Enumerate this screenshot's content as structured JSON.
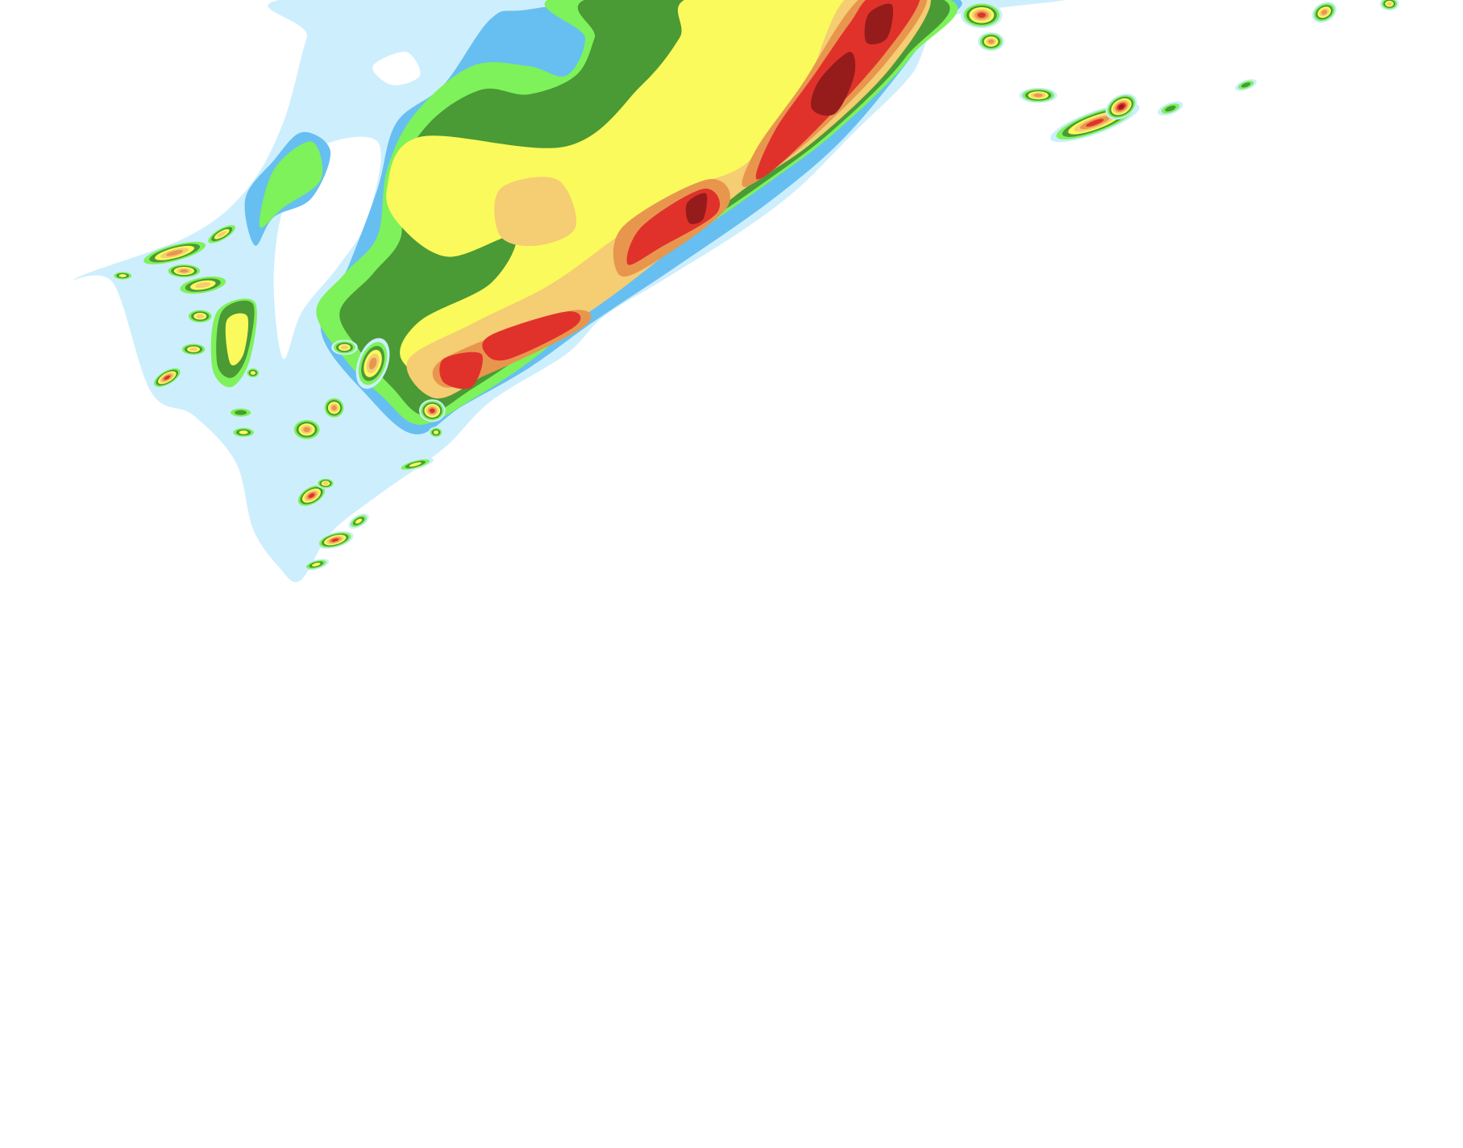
{
  "colors": {
    "level1": "#cdeefd",
    "level2": "#66bff0",
    "level3": "#7ef25a",
    "level4": "#4a9a35",
    "level5": "#fafa5c",
    "level6": "#f5cd73",
    "level7": "#e8964e",
    "level8": "#e0322b",
    "level9": "#961c1c"
  }
}
